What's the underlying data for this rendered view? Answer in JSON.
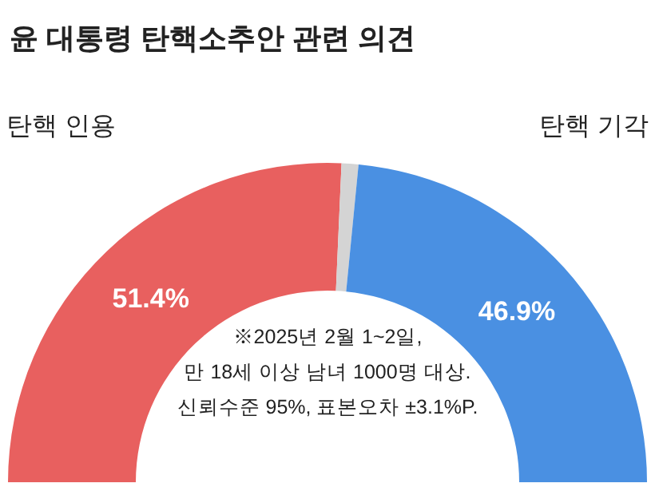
{
  "chart_data": {
    "type": "donut",
    "title": "윤 대통령 탄핵소추안 관련 의견",
    "categories": [
      "탄핵 인용",
      null,
      "탄핵 기각"
    ],
    "values": [
      51.4,
      1.7,
      46.9
    ],
    "colors": [
      "#e8605f",
      "#d4d4d4",
      "#4a90e2"
    ],
    "value_labels": [
      "51.4%",
      null,
      "46.9%"
    ],
    "annotations": [
      "※2025년 2월 1~2일,",
      "만 18세 이상 남녀 1000명 대상.",
      "신뢰수준 95%, 표본오차 ±3.1%P."
    ]
  }
}
